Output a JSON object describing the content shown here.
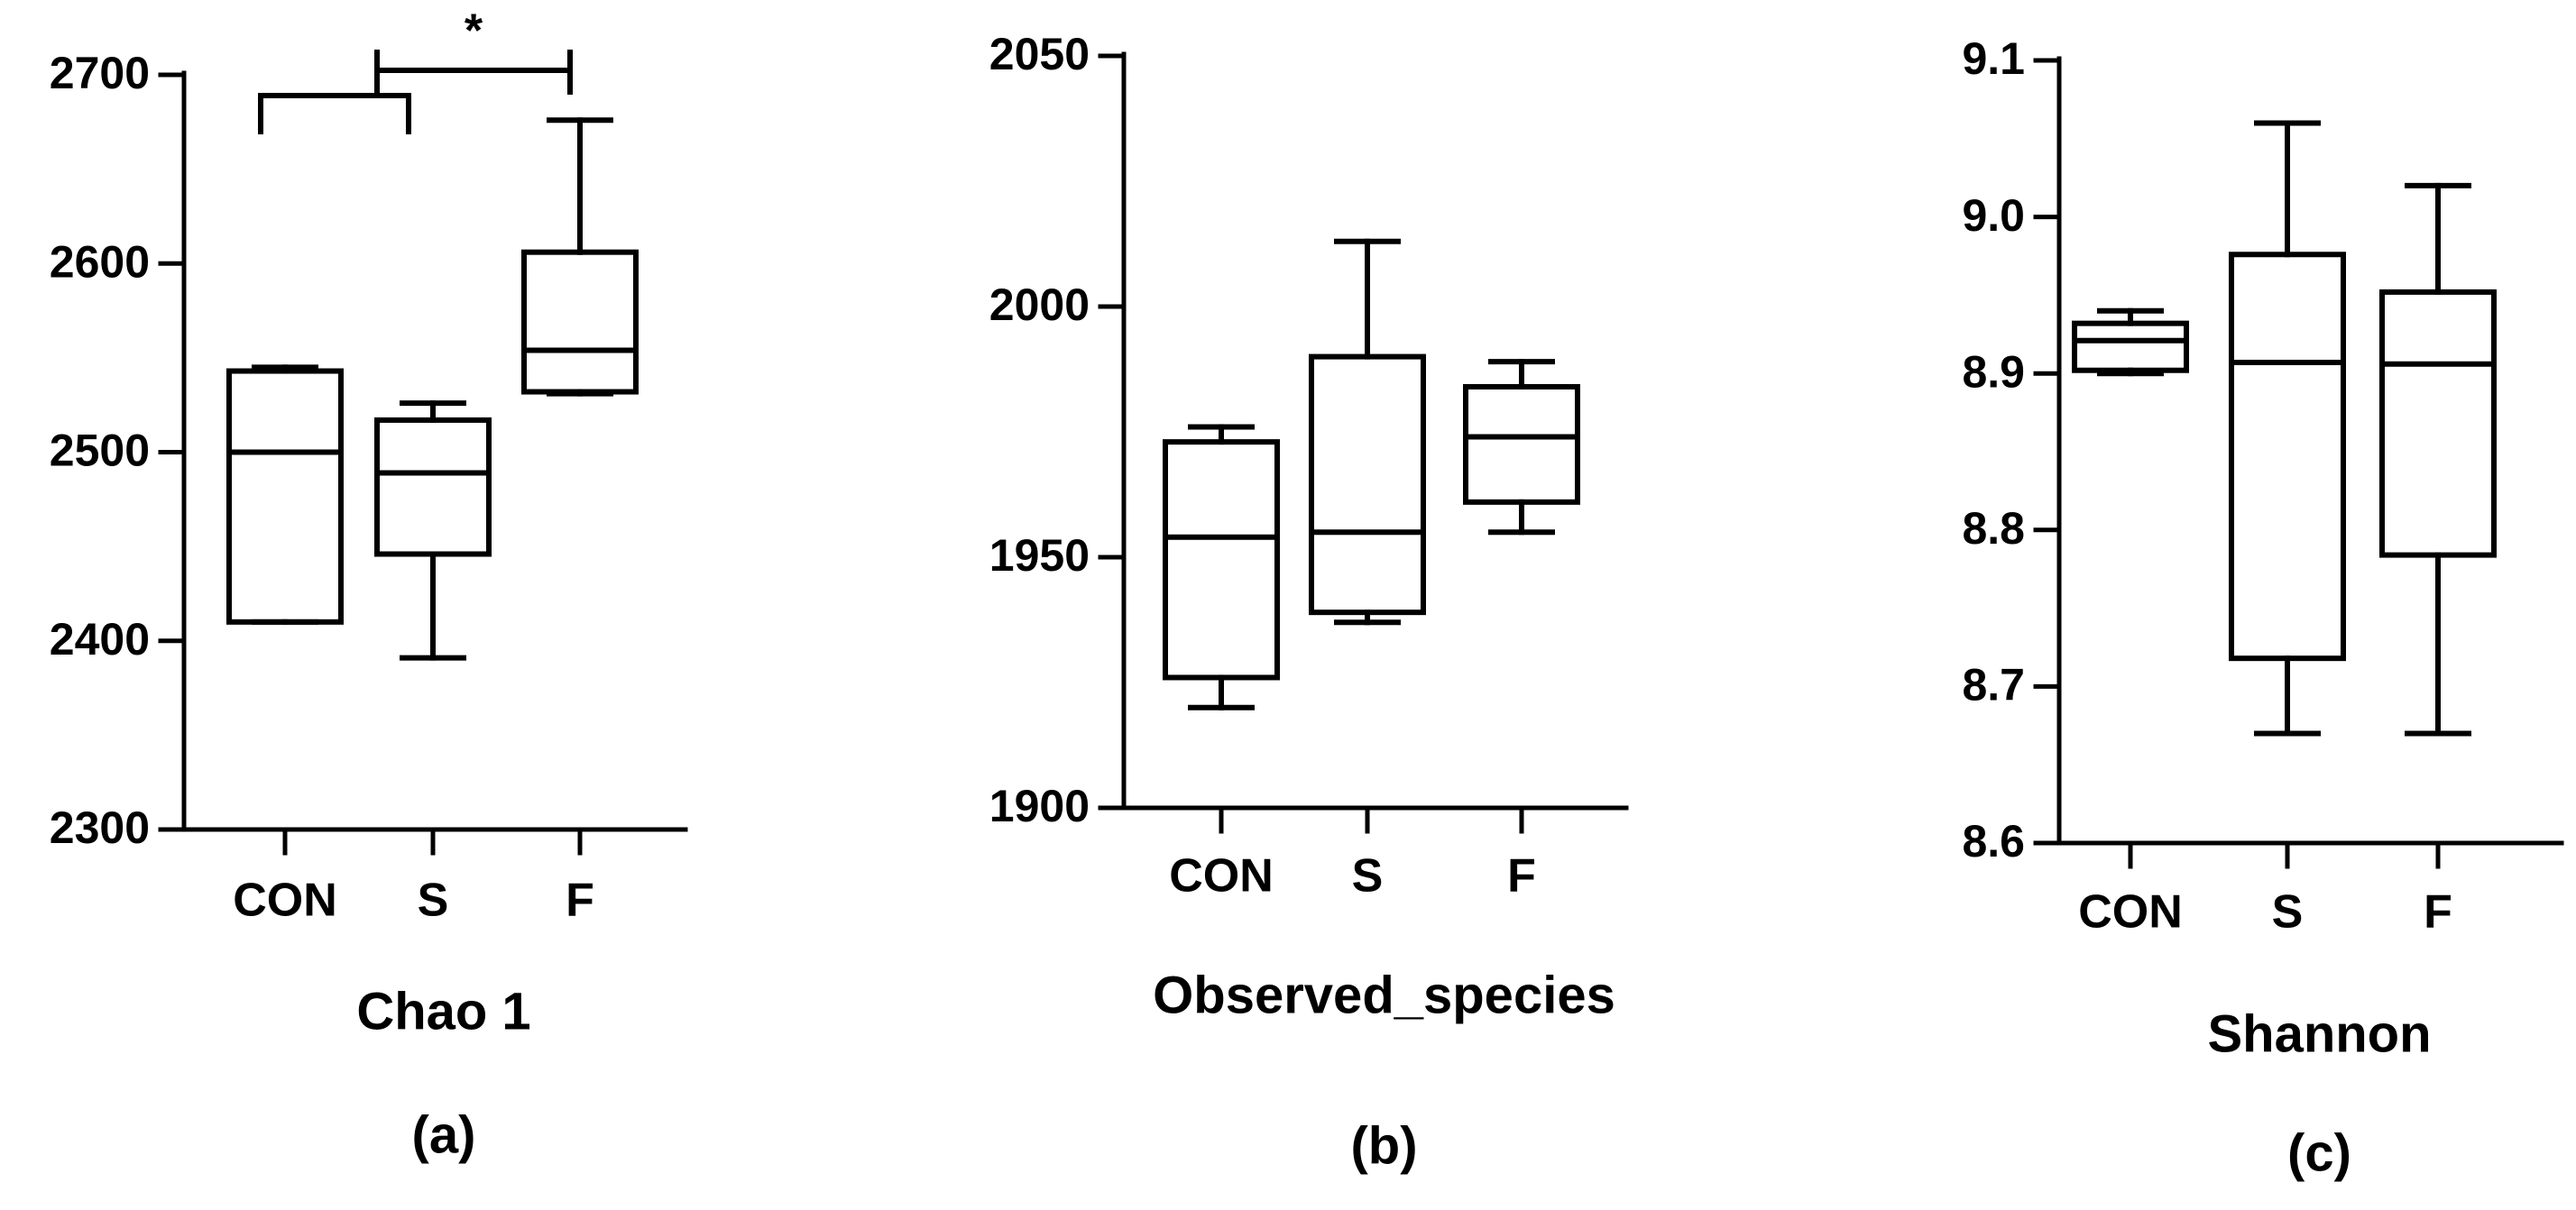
{
  "chart_data": [
    {
      "type": "box",
      "panel_label": "(a)",
      "xlabel": "Chao 1",
      "categories": [
        "CON",
        "S",
        "F"
      ],
      "ylim": [
        2300,
        2700
      ],
      "yticks": [
        2300,
        2400,
        2500,
        2600,
        2700
      ],
      "boxes": [
        {
          "name": "CON",
          "min": 2410,
          "q1": 2410,
          "median": 2500,
          "q3": 2543,
          "max": 2545
        },
        {
          "name": "S",
          "min": 2391,
          "q1": 2446,
          "median": 2489,
          "q3": 2517,
          "max": 2526
        },
        {
          "name": "F",
          "min": 2531,
          "q1": 2532,
          "median": 2554,
          "q3": 2606,
          "max": 2676
        }
      ],
      "significance": [
        {
          "from": "CON",
          "to": "S",
          "level": 2689,
          "label": ""
        },
        {
          "from": "CON-S",
          "to": "F",
          "level": 2700,
          "label": "*"
        }
      ]
    },
    {
      "type": "box",
      "panel_label": "(b)",
      "xlabel": "Observed_species",
      "categories": [
        "CON",
        "S",
        "F"
      ],
      "ylim": [
        1900,
        2050
      ],
      "yticks": [
        1900,
        1950,
        2000,
        2050
      ],
      "boxes": [
        {
          "name": "CON",
          "min": 1920,
          "q1": 1926,
          "median": 1954,
          "q3": 1973,
          "max": 1976
        },
        {
          "name": "S",
          "min": 1937,
          "q1": 1939,
          "median": 1955,
          "q3": 1990,
          "max": 2013
        },
        {
          "name": "F",
          "min": 1955,
          "q1": 1961,
          "median": 1974,
          "q3": 1984,
          "max": 1989
        }
      ],
      "significance": []
    },
    {
      "type": "box",
      "panel_label": "(c)",
      "xlabel": "Shannon",
      "categories": [
        "CON",
        "S",
        "F"
      ],
      "ylim": [
        8.6,
        9.1
      ],
      "yticks": [
        8.6,
        8.7,
        8.8,
        8.9,
        9.0,
        9.1
      ],
      "ytick_labels": [
        "8.6",
        "8.7",
        "8.8",
        "8.9",
        "9.0",
        "9.1"
      ],
      "boxes": [
        {
          "name": "CON",
          "min": 8.9,
          "q1": 8.902,
          "median": 8.921,
          "q3": 8.932,
          "max": 8.94
        },
        {
          "name": "S",
          "min": 8.67,
          "q1": 8.718,
          "median": 8.907,
          "q3": 8.976,
          "max": 9.06
        },
        {
          "name": "F",
          "min": 8.67,
          "q1": 8.784,
          "median": 8.906,
          "q3": 8.952,
          "max": 9.02
        }
      ],
      "significance": []
    }
  ]
}
